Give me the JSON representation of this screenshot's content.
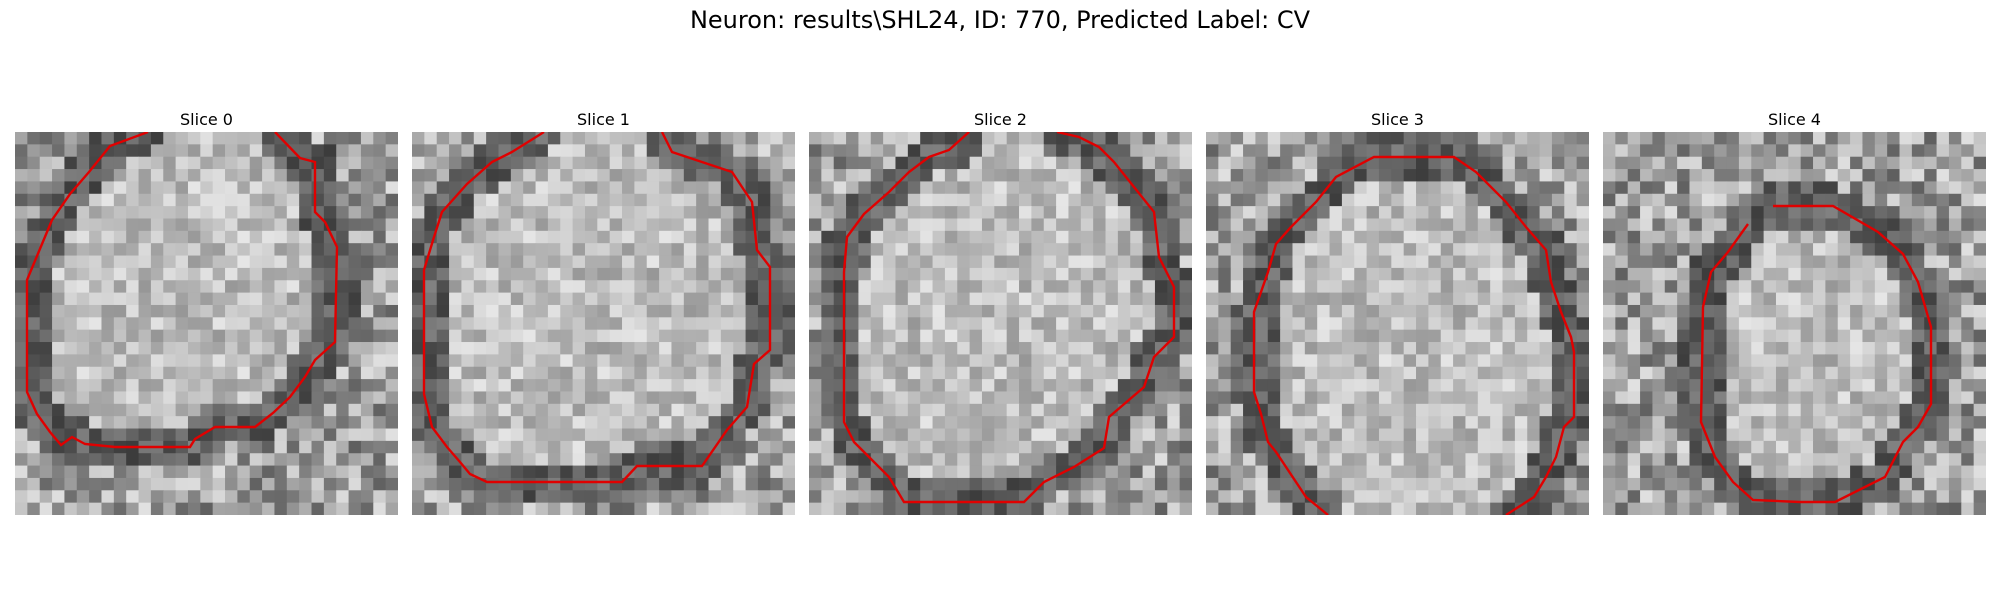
{
  "figure": {
    "title": "Neuron: results\\SHL24, ID: 770, Predicted Label: CV",
    "contour_color": "#e00000"
  },
  "panels": [
    {
      "title": "Slice 0"
    },
    {
      "title": "Slice 1"
    },
    {
      "title": "Slice 2"
    },
    {
      "title": "Slice 3"
    },
    {
      "title": "Slice 4"
    }
  ]
}
